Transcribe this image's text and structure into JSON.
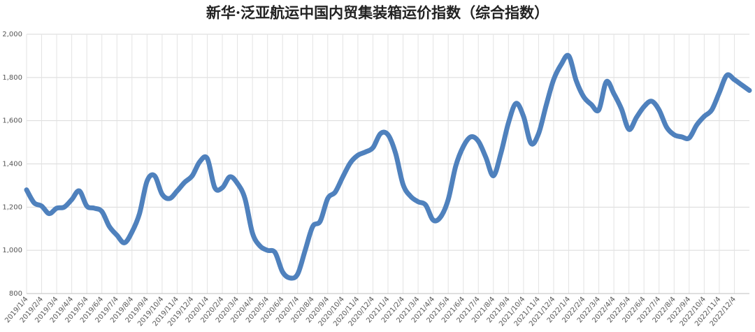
{
  "chart_data": {
    "type": "line",
    "title": "新华·泛亚航运中国内贸集装箱运价指数（综合指数）",
    "categories": [
      "2019/1/4",
      null,
      "2019/2/4",
      null,
      "2019/3/4",
      null,
      "2019/4/4",
      null,
      "2019/5/4",
      null,
      "2019/6/4",
      null,
      "2019/7/4",
      null,
      "2019/8/4",
      null,
      "2019/9/4",
      null,
      "2019/10/4",
      null,
      "2019/11/4",
      null,
      "2019/12/4",
      null,
      "2020/1/4",
      null,
      "2020/2/4",
      null,
      "2020/3/4",
      null,
      "2020/4/4",
      null,
      "2020/5/4",
      null,
      "2020/6/4",
      null,
      "2020/7/4",
      null,
      "2020/8/4",
      null,
      "2020/9/4",
      null,
      "2020/10/4",
      null,
      "2020/11/4",
      null,
      "2020/12/4",
      null,
      "2021/1/4",
      null,
      "2021/2/4",
      null,
      "2021/3/4",
      null,
      "2021/4/4",
      null,
      "2021/5/4",
      null,
      "2021/6/4",
      null,
      "2021/7/4",
      null,
      "2021/8/4",
      null,
      "2021/9/4",
      null,
      "2021/10/4",
      null,
      "2021/11/4",
      null,
      "2021/12/4",
      null,
      "2022/1/4",
      null,
      "2022/2/4",
      null,
      "2022/3/4",
      null,
      "2022/4/4",
      null,
      "2022/5/4",
      null,
      "2022/6/4",
      null,
      "2022/7/4",
      null,
      "2022/8/4",
      null,
      "2022/9/4",
      null,
      "2022/10/4",
      null,
      "2022/11/4",
      null,
      "2022/12/4",
      null,
      null
    ],
    "series": [
      {
        "name": "综合指数",
        "color": "#4f81bd",
        "values": [
          1280,
          1220,
          1205,
          1170,
          1195,
          1200,
          1235,
          1275,
          1205,
          1195,
          1180,
          1110,
          1070,
          1035,
          1085,
          1170,
          1320,
          1345,
          1260,
          1240,
          1275,
          1315,
          1345,
          1410,
          1425,
          1290,
          1290,
          1340,
          1310,
          1240,
          1080,
          1020,
          1000,
          990,
          900,
          872,
          890,
          1000,
          1110,
          1135,
          1240,
          1270,
          1340,
          1405,
          1440,
          1455,
          1475,
          1540,
          1535,
          1450,
          1305,
          1250,
          1225,
          1210,
          1140,
          1155,
          1235,
          1390,
          1480,
          1525,
          1505,
          1430,
          1345,
          1450,
          1590,
          1680,
          1620,
          1495,
          1540,
          1670,
          1790,
          1860,
          1900,
          1785,
          1710,
          1675,
          1650,
          1780,
          1725,
          1655,
          1560,
          1615,
          1665,
          1690,
          1650,
          1570,
          1535,
          1525,
          1520,
          1580,
          1620,
          1650,
          1730,
          1810,
          1790,
          1765,
          1740
        ]
      }
    ],
    "ylim": [
      800,
      2000
    ],
    "yticks": [
      800,
      {
        "value": 1000,
        "label": "1,000"
      },
      {
        "value": 1200,
        "label": "1,200"
      },
      {
        "value": 1400,
        "label": "1,400"
      },
      {
        "value": 1600,
        "label": "1,600"
      },
      {
        "value": 1800,
        "label": "1,800"
      },
      {
        "value": 2000,
        "label": "2,000"
      }
    ],
    "grid": true
  }
}
